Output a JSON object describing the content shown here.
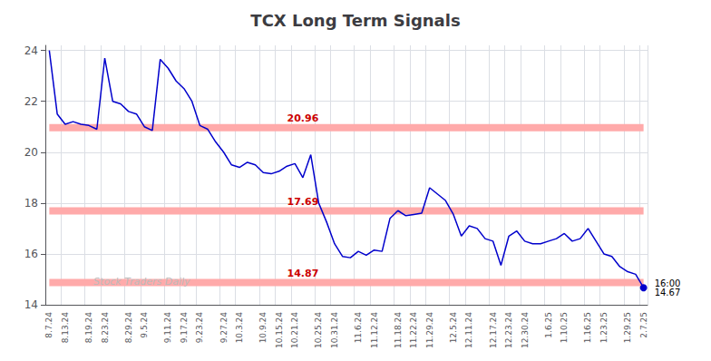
{
  "chart_data": {
    "type": "line",
    "title": "TCX Long Term Signals",
    "categories": [
      "8.7.24",
      null,
      "8.13.24",
      null,
      null,
      "8.19.24",
      null,
      "8.23.24",
      null,
      null,
      "8.29.24",
      null,
      "9.5.24",
      null,
      null,
      "9.11.24",
      null,
      "9.17.24",
      null,
      "9.23.24",
      null,
      null,
      "9.27.24",
      null,
      "10.3.24",
      null,
      null,
      "10.9.24",
      null,
      "10.15.24",
      null,
      "10.21.24",
      null,
      null,
      "10.25.24",
      null,
      "10.31.24",
      null,
      null,
      "11.6.24",
      null,
      "11.12.24",
      null,
      null,
      "11.18.24",
      null,
      "11.22.24",
      null,
      "11.29.24",
      null,
      null,
      "12.5.24",
      null,
      "12.11.24",
      null,
      null,
      "12.17.24",
      null,
      "12.23.24",
      null,
      "12.30.24",
      null,
      null,
      "1.6.25",
      null,
      "1.10.25",
      null,
      null,
      "1.16.25",
      null,
      "1.23.25",
      null,
      null,
      "1.29.25",
      null,
      "2.7.25"
    ],
    "values": [
      24.0,
      21.5,
      21.1,
      21.2,
      21.1,
      21.05,
      20.9,
      23.7,
      22.0,
      21.9,
      21.6,
      21.5,
      21.0,
      20.85,
      23.65,
      23.3,
      22.8,
      22.5,
      22.0,
      21.05,
      20.9,
      20.4,
      20.0,
      19.5,
      19.4,
      19.6,
      19.5,
      19.2,
      19.15,
      19.25,
      19.45,
      19.55,
      19.0,
      19.9,
      18.0,
      17.25,
      16.4,
      15.9,
      15.85,
      16.1,
      15.95,
      16.15,
      16.1,
      17.4,
      17.7,
      17.5,
      17.55,
      17.6,
      18.6,
      18.35,
      18.1,
      17.55,
      16.7,
      17.1,
      17.0,
      16.6,
      16.5,
      15.55,
      16.7,
      16.9,
      16.5,
      16.4,
      16.4,
      16.5,
      16.6,
      16.8,
      16.5,
      16.6,
      17.0,
      16.5,
      16.0,
      15.9,
      15.5,
      15.3,
      15.2,
      14.67
    ],
    "color": "#0000cc",
    "ylim": [
      14,
      24.2
    ],
    "yticks": [
      14,
      16,
      18,
      20,
      22,
      24
    ],
    "grid": true,
    "hlines": [
      {
        "y": 20.96,
        "label": "20.96",
        "color": "#ffaaaa",
        "label_color": "#cc0000"
      },
      {
        "y": 17.69,
        "label": "17.69",
        "color": "#ffaaaa",
        "label_color": "#cc0000"
      },
      {
        "y": 14.87,
        "label": "14.87",
        "color": "#ffaaaa",
        "label_color": "#cc0000"
      }
    ],
    "annotations": [
      {
        "text": "16:00\n14.67"
      }
    ],
    "watermark": {
      "text": "Stock Traders Daily",
      "color": "#bbbbbb"
    }
  }
}
